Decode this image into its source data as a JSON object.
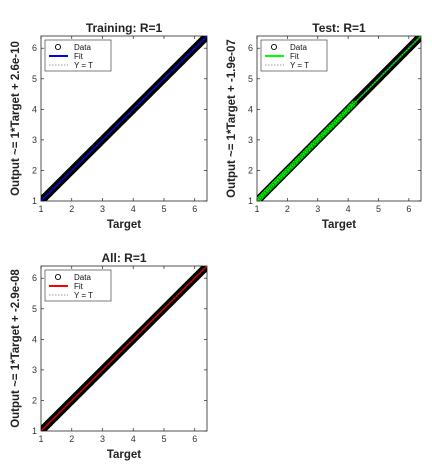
{
  "chart_data": [
    {
      "type": "scatter",
      "title": "Training: R=1",
      "xlabel": "Target",
      "ylabel": "Output ~= 1*Target + 2.6e-10",
      "xlim": [
        1,
        6.4
      ],
      "ylim": [
        1,
        6.4
      ],
      "xticks": [
        "1",
        "2",
        "3",
        "4",
        "5",
        "6"
      ],
      "yticks": [
        "1",
        "2",
        "3",
        "4",
        "5",
        "6"
      ],
      "grid": false,
      "legend_position": "top-left",
      "legend": [
        "Data",
        "Fit",
        "Y = T"
      ],
      "fit_color": "#0000ff",
      "data_color": "#000000",
      "data_range": [
        1,
        6.4
      ],
      "fit": {
        "slope": 1,
        "intercept": 2.6e-10
      }
    },
    {
      "type": "scatter",
      "title": "Test: R=1",
      "xlabel": "Target",
      "ylabel": "Output ~= 1*Target + -1.9e-07",
      "xlim": [
        1,
        6.4
      ],
      "ylim": [
        1,
        6.4
      ],
      "xticks": [
        "1",
        "2",
        "3",
        "4",
        "5",
        "6"
      ],
      "yticks": [
        "1",
        "2",
        "3",
        "4",
        "5",
        "6"
      ],
      "grid": false,
      "legend_position": "top-left",
      "legend": [
        "Data",
        "Fit",
        "Y = T"
      ],
      "fit_color": "#00ff00",
      "data_color": "#000000",
      "data_range": [
        1,
        6.4
      ],
      "fit": {
        "slope": 1,
        "intercept": -1.9e-07
      }
    },
    {
      "type": "scatter",
      "title": "All: R=1",
      "xlabel": "Target",
      "ylabel": "Output ~= 1*Target + -2.9e-08",
      "xlim": [
        1,
        6.4
      ],
      "ylim": [
        1,
        6.4
      ],
      "xticks": [
        "1",
        "2",
        "3",
        "4",
        "5",
        "6"
      ],
      "yticks": [
        "1",
        "2",
        "3",
        "4",
        "5",
        "6"
      ],
      "grid": false,
      "legend_position": "top-left",
      "legend": [
        "Data",
        "Fit",
        "Y = T"
      ],
      "fit_color": "#ff0000",
      "data_color": "#000000",
      "data_range": [
        1,
        6.4
      ],
      "fit": {
        "slope": 1,
        "intercept": -2.9e-08
      }
    }
  ]
}
